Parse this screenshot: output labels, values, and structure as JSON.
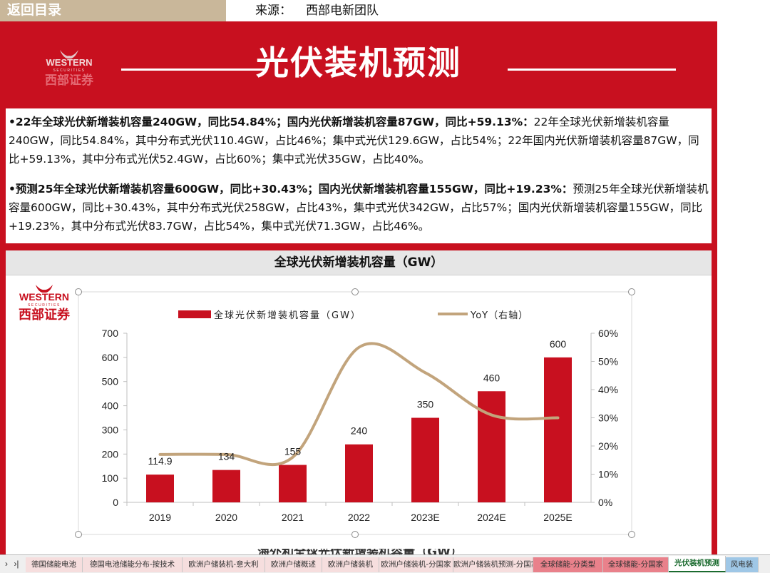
{
  "topbar": {
    "back_label": "返回目录",
    "source_label": "来源：",
    "source_value": "西部电新团队"
  },
  "header": {
    "title": "光伏装机预测",
    "logo_en": "WESTERN",
    "logo_sub": "SECURITIES",
    "logo_cn": "西部证券"
  },
  "text": {
    "p1_bold": "•22年全球光伏新增装机容量240GW，同比54.84%；国内光伏新增装机容量87GW，同比+59.13%：",
    "p1_rest": "22年全球光伏新增装机容量240GW，同比54.84%，其中分布式光伏110.4GW，占比46%；集中式光伏129.6GW，占比54%；22年国内光伏新增装机容量87GW，同比+59.13%，其中分布式光伏52.4GW，占比60%；集中式光伏35GW，占比40%。",
    "p2_bold": "•预测25年全球光伏新增装机容量600GW，同比+30.43%；国内光伏新增装机容量155GW，同比+19.23%：",
    "p2_rest": "预测25年全球光伏新增装机容量600GW，同比+30.43%，其中分布式光伏258GW，占比43%，集中式光伏342GW，占比57%；国内光伏新增装机容量155GW，同比+19.23%，其中分布式光伏83.7GW，占比54%，集中式光伏71.3GW，占比46%。"
  },
  "chart_panel": {
    "title": "全球光伏新增装机容量（GW）",
    "next_title": "海外和全球光伏新增装机容量（GW）"
  },
  "chart_data": {
    "type": "bar",
    "categories": [
      "2019",
      "2020",
      "2021",
      "2022",
      "2023E",
      "2024E",
      "2025E"
    ],
    "series": [
      {
        "name": "全球光伏新增装机容量（GW）",
        "type": "bar",
        "axis": "left",
        "values": [
          114.9,
          134,
          155,
          240,
          350,
          460,
          600
        ],
        "labels": [
          "114.9",
          "134",
          "155",
          "240",
          "350",
          "460",
          "600"
        ]
      },
      {
        "name": "YoY（右轴）",
        "type": "line",
        "axis": "right",
        "values": [
          0.17,
          0.17,
          0.16,
          0.55,
          0.46,
          0.31,
          0.3
        ]
      }
    ],
    "ylim": [
      0,
      700
    ],
    "yticks": [
      "0",
      "100",
      "200",
      "300",
      "400",
      "500",
      "600",
      "700"
    ],
    "y2lim": [
      0,
      0.6
    ],
    "y2ticks": [
      "0%",
      "10%",
      "20%",
      "30%",
      "40%",
      "50%",
      "60%"
    ],
    "legend": "top",
    "grid": false,
    "colors": {
      "bar": "#c8101f",
      "line": "#c2a47c"
    }
  },
  "tabs": [
    {
      "label": "德国储能电池",
      "color": "#f6dede",
      "active": false
    },
    {
      "label": "德国电池储能分布-按技术",
      "color": "#f6dede",
      "active": false
    },
    {
      "label": "欧洲户储装机-意大利",
      "color": "#f6dede",
      "active": false
    },
    {
      "label": "欧洲户储概述",
      "color": "#f6dede",
      "active": false
    },
    {
      "label": "欧洲户储装机",
      "color": "#f6dede",
      "active": false
    },
    {
      "label": "欧洲户储装机-分国家",
      "color": "#f6dede",
      "active": false
    },
    {
      "label": "欧洲户储装机预测-分国家",
      "color": "#f6dede",
      "active": false
    },
    {
      "label": "全球储能-分类型",
      "color": "#e9818b",
      "active": false
    },
    {
      "label": "全球储能-分国家",
      "color": "#e9818b",
      "active": false
    },
    {
      "label": "光伏装机预测",
      "color": "#ffffff",
      "active": true
    },
    {
      "label": "风电装",
      "color": "#9fc7e6",
      "active": false
    }
  ],
  "nav": {
    "first": "›",
    "last": "›|"
  }
}
